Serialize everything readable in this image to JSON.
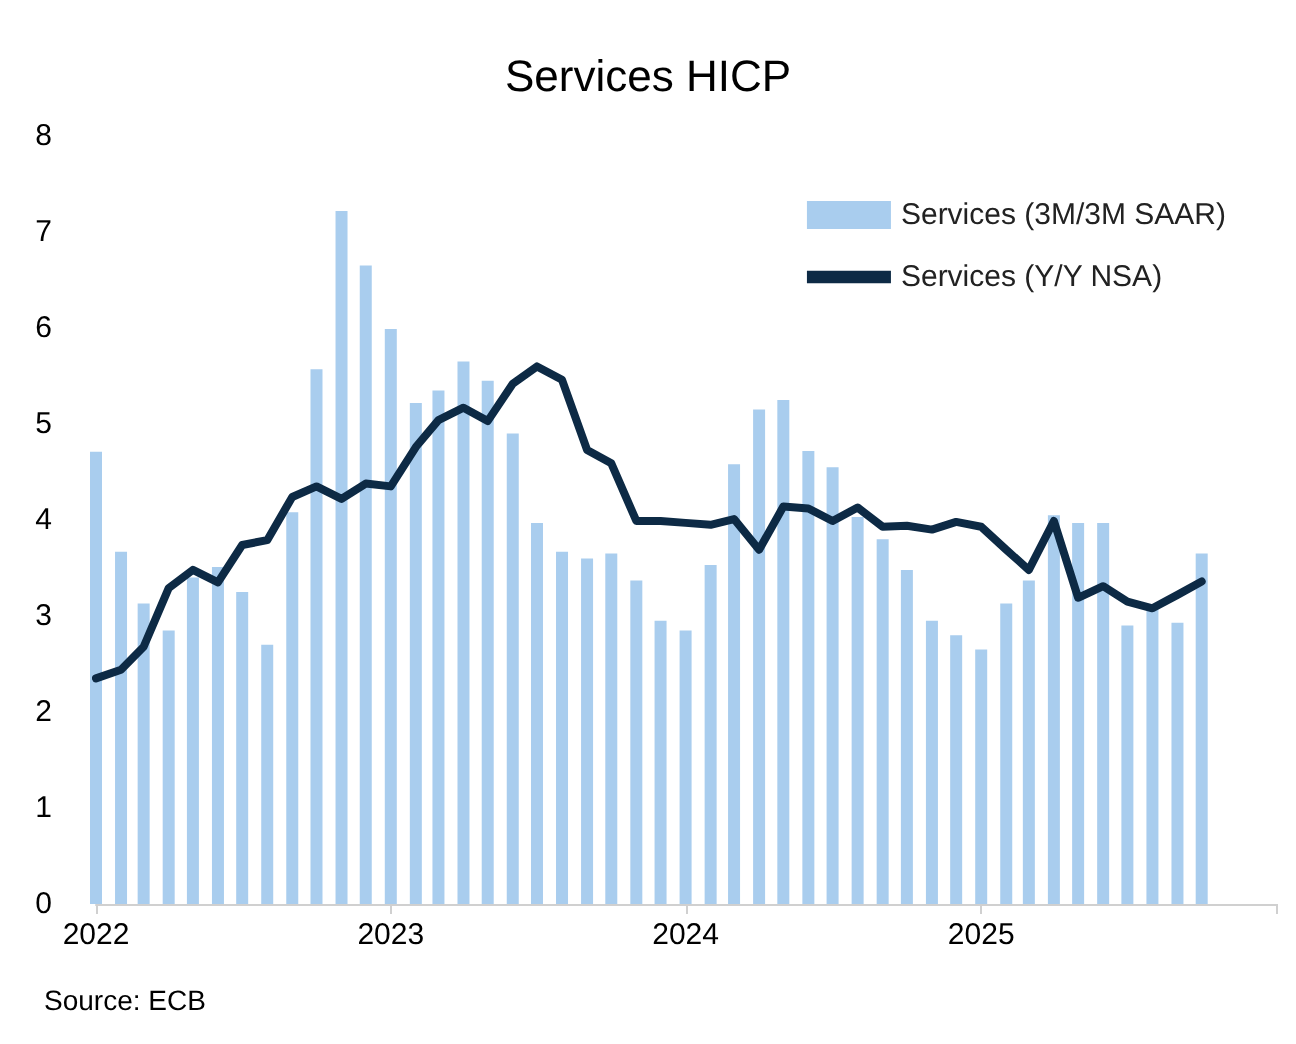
{
  "chart_data": {
    "type": "bar",
    "title": "Services HICP",
    "annotations": [
      "Source: ECB"
    ],
    "x": [
      "2022-01",
      "2022-02",
      "2022-03",
      "2022-04",
      "2022-05",
      "2022-06",
      "2022-07",
      "2022-08",
      "2022-09",
      "2022-10",
      "2022-11",
      "2022-12",
      "2023-01",
      "2023-02",
      "2023-03",
      "2023-04",
      "2023-05",
      "2023-06",
      "2023-07",
      "2023-08",
      "2023-09",
      "2023-10",
      "2023-11",
      "2023-12",
      "2024-01",
      "2024-02",
      "2024-03",
      "2024-04",
      "2024-05",
      "2024-06",
      "2024-07",
      "2024-08",
      "2024-09",
      "2024-10",
      "2024-11",
      "2024-12",
      "2025-01",
      "2025-02",
      "2025-03",
      "2025-04",
      "2025-05",
      "2025-06",
      "2025-07",
      "2025-08",
      "2025-09",
      "2025-10"
    ],
    "series": [
      {
        "name": "Services (3M/3M SAAR)",
        "color": "#a9cdee",
        "values": [
          4.71,
          3.67,
          3.13,
          2.85,
          3.4,
          3.51,
          3.25,
          2.7,
          4.08,
          5.57,
          7.22,
          6.65,
          5.99,
          5.22,
          5.35,
          5.65,
          5.45,
          4.9,
          3.97,
          3.67,
          3.6,
          3.65,
          3.37,
          2.95,
          2.85,
          3.53,
          4.58,
          5.15,
          5.25,
          4.72,
          4.55,
          4.03,
          3.8,
          3.48,
          2.95,
          2.8,
          2.65,
          3.13,
          3.37,
          4.05,
          3.97,
          3.97,
          2.9,
          3.1,
          2.93,
          3.65
        ]
      },
      {
        "name": "Services (Y/Y NSA)",
        "type": "line",
        "color": "#0d2a45",
        "values": [
          2.35,
          2.44,
          2.68,
          3.29,
          3.48,
          3.35,
          3.74,
          3.79,
          4.24,
          4.35,
          4.22,
          4.38,
          4.35,
          4.76,
          5.04,
          5.17,
          5.03,
          5.42,
          5.6,
          5.46,
          4.73,
          4.59,
          3.99,
          3.99,
          3.97,
          3.95,
          4.01,
          3.69,
          4.14,
          4.12,
          3.99,
          4.13,
          3.93,
          3.94,
          3.9,
          3.98,
          3.93,
          3.69,
          3.48,
          3.99,
          3.19,
          3.31,
          3.15,
          3.08,
          3.22,
          3.36
        ]
      }
    ],
    "xlim": [
      "2022-01",
      "2026-01"
    ],
    "xticks": [
      {
        "value": "2022",
        "label": "2022"
      },
      {
        "value": "2023",
        "label": "2023"
      },
      {
        "value": "2024",
        "label": "2024"
      },
      {
        "value": "2025",
        "label": "2025"
      },
      {
        "value": "2026",
        "label": null
      }
    ],
    "ylim": [
      0,
      8
    ],
    "yticks": [
      0,
      1,
      2,
      3,
      4,
      5,
      6,
      7,
      8
    ],
    "grid": false,
    "legend": "top right",
    "marker": "none",
    "line_style": "solid"
  }
}
